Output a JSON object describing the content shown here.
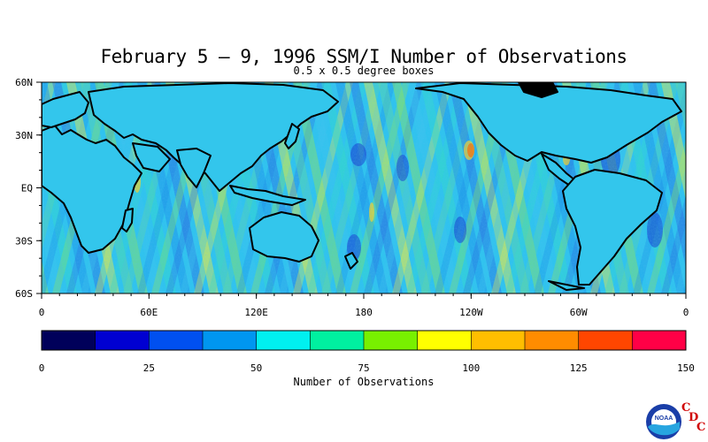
{
  "figure": {
    "title": "February 5 – 9, 1996 SSM/I Number of Observations",
    "subtitle": "0.5 x 0.5 degree boxes"
  },
  "map": {
    "lat_labels": [
      "60N",
      "30N",
      "EQ",
      "30S",
      "60S"
    ],
    "lon_labels": [
      "0",
      "60E",
      "120E",
      "180",
      "120W",
      "60W",
      "0"
    ],
    "lat_range": [
      -60,
      60
    ],
    "lon_range": [
      0,
      360
    ],
    "land_color": "#000000",
    "coastline_color": "#000000"
  },
  "colorbar": {
    "title": "Number of Observations",
    "tick_labels": [
      "0",
      "25",
      "50",
      "75",
      "100",
      "125",
      "150"
    ],
    "range": [
      0,
      150
    ],
    "colors": [
      "#00005a",
      "#0000d2",
      "#0050f0",
      "#0096f0",
      "#00f0f0",
      "#00f0a0",
      "#78f000",
      "#ffff00",
      "#ffbe00",
      "#ff8c00",
      "#ff4600",
      "#ff0046"
    ]
  },
  "logo": {
    "icon": "noaa-logo-icon",
    "text": "NOAA",
    "cdc_letters": [
      "C",
      "D",
      "C"
    ]
  }
}
